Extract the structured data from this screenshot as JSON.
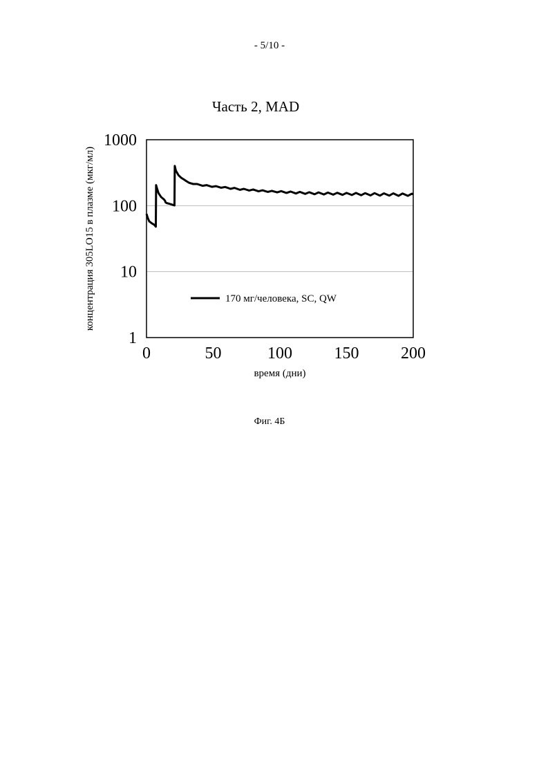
{
  "page": {
    "page_number": "- 5/10 -",
    "figure_caption": "Фиг. 4Б"
  },
  "chart_data": {
    "type": "line",
    "title": "Часть 2, MAD",
    "xlabel": "время (дни)",
    "ylabel": "концентрация 305LO15 в плазме (мкг/мл)",
    "xlim": [
      0,
      200
    ],
    "ylim": [
      1,
      1000
    ],
    "yscale": "log",
    "x_ticks": [
      "0",
      "50",
      "100",
      "150",
      "200"
    ],
    "y_ticks": [
      "1",
      "10",
      "100",
      "1000"
    ],
    "grid": "horizontal gridlines at 10 and 100",
    "legend_position": "center",
    "colors": {
      "line": "#000000",
      "grid": "#bbbbbb",
      "frame": "#000000"
    },
    "series": [
      {
        "name": "170 мг/человека, SC, QW",
        "x": [
          0,
          1,
          2,
          4,
          6,
          7,
          7.2,
          8,
          9,
          11,
          13,
          14,
          14.2,
          15,
          17,
          19,
          21,
          21.2,
          22,
          24,
          26,
          28,
          30,
          32,
          35,
          38,
          42,
          45,
          49,
          52,
          56,
          59,
          63,
          66,
          70,
          73,
          77,
          80,
          84,
          87,
          91,
          94,
          98,
          101,
          105,
          108,
          112,
          115,
          119,
          122,
          126,
          129,
          133,
          136,
          140,
          143,
          147,
          150,
          154,
          157,
          161,
          164,
          168,
          171,
          175,
          178,
          182,
          185,
          189,
          192,
          196,
          199,
          200
        ],
        "y": [
          75,
          65,
          58,
          54,
          51,
          48,
          205,
          180,
          155,
          135,
          125,
          118,
          113,
          110,
          107,
          104,
          101,
          400,
          340,
          290,
          265,
          250,
          235,
          222,
          213,
          213,
          200,
          205,
          193,
          198,
          187,
          192,
          180,
          186,
          174,
          180,
          170,
          176,
          165,
          171,
          162,
          168,
          159,
          166,
          156,
          164,
          153,
          162,
          151,
          160,
          149,
          159,
          148,
          158,
          147,
          157,
          146,
          156,
          145,
          156,
          144,
          155,
          143,
          155,
          142,
          154,
          142,
          154,
          141,
          153,
          141,
          152,
          148
        ]
      }
    ]
  }
}
